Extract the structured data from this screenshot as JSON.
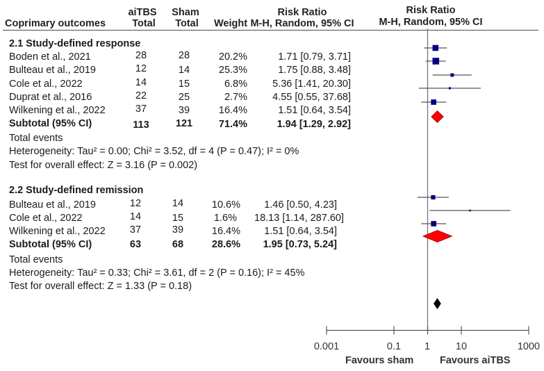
{
  "header": {
    "outcome_label": "Coprimary outcomes",
    "aitbs_label": "aiTBS",
    "aitbs_total_label": "Total",
    "sham_label": "Sham",
    "sham_total_label": "Total",
    "weight_label": "Weight",
    "rr_label": "Risk Ratio",
    "rr_method_label": "M-H, Random, 95% CI",
    "plot_rr_label": "Risk Ratio",
    "plot_rr_method_label": "M-H, Random, 95% CI"
  },
  "chart_data": {
    "type": "forest",
    "title": "",
    "xscale": "log",
    "xlim": [
      0.001,
      1000
    ],
    "x_ticks": [
      "0.001",
      "0.1",
      "1",
      "10",
      "1000"
    ],
    "x_tick_values": [
      0.001,
      0.1,
      1,
      10,
      1000
    ],
    "xlabel_left": "Favours sham",
    "xlabel_right": "Favours aiTBS",
    "colors": {
      "study": "#000080",
      "subtotal": "#ff0000",
      "overall": "#000000",
      "line": "#555555"
    },
    "subgroups": [
      {
        "title": "2.1 Study-defined response",
        "studies": [
          {
            "name": "Boden et al., 2021",
            "aitbs_total": "28",
            "sham_total": "28",
            "weight": "20.2%",
            "rr_text": "1.71 [0.79, 3.71]",
            "rr": 1.71,
            "lo": 0.79,
            "hi": 3.71,
            "w": 20.2
          },
          {
            "name": "Bulteau et al., 2019",
            "aitbs_total": "12",
            "sham_total": "14",
            "weight": "25.3%",
            "rr_text": "1.75 [0.88, 3.48]",
            "rr": 1.75,
            "lo": 0.88,
            "hi": 3.48,
            "w": 25.3
          },
          {
            "name": "Cole et al., 2022",
            "aitbs_total": "14",
            "sham_total": "15",
            "weight": "6.8%",
            "rr_text": "5.36 [1.41, 20.30]",
            "rr": 5.36,
            "lo": 1.41,
            "hi": 20.3,
            "w": 6.8
          },
          {
            "name": "Duprat et al., 2016",
            "aitbs_total": "22",
            "sham_total": "25",
            "weight": "2.7%",
            "rr_text": "4.55 [0.55, 37.68]",
            "rr": 4.55,
            "lo": 0.55,
            "hi": 37.68,
            "w": 2.7
          },
          {
            "name": "Wilkening et al., 2022",
            "aitbs_total": "37",
            "sham_total": "39",
            "weight": "16.4%",
            "rr_text": "1.51 [0.64, 3.54]",
            "rr": 1.51,
            "lo": 0.64,
            "hi": 3.54,
            "w": 16.4
          }
        ],
        "subtotal": {
          "label": "Subtotal (95% CI)",
          "aitbs_total": "113",
          "sham_total": "121",
          "weight": "71.4%",
          "rr_text": "1.94 [1.29, 2.92]",
          "rr": 1.94,
          "lo": 1.29,
          "hi": 2.92
        },
        "total_events_label": "Total events",
        "heterogeneity": "Heterogeneity: Tau² = 0.00; Chi² = 3.52, df = 4 (P = 0.47); I² = 0%",
        "overall_effect": "Test for overall effect: Z = 3.16 (P = 0.002)"
      },
      {
        "title": "2.2 Study-defined remission",
        "studies": [
          {
            "name": "Bulteau et al., 2019",
            "aitbs_total": "12",
            "sham_total": "14",
            "weight": "10.6%",
            "rr_text": "1.46 [0.50, 4.23]",
            "rr": 1.46,
            "lo": 0.5,
            "hi": 4.23,
            "w": 10.6
          },
          {
            "name": "Cole et al., 2022",
            "aitbs_total": "14",
            "sham_total": "15",
            "weight": "1.6%",
            "rr_text": "18.13 [1.14, 287.60]",
            "rr": 18.13,
            "lo": 1.14,
            "hi": 287.6,
            "w": 1.6
          },
          {
            "name": "Wilkening et al., 2022",
            "aitbs_total": "37",
            "sham_total": "39",
            "weight": "16.4%",
            "rr_text": "1.51 [0.64, 3.54]",
            "rr": 1.51,
            "lo": 0.64,
            "hi": 3.54,
            "w": 16.4
          }
        ],
        "subtotal": {
          "label": "Subtotal (95% CI)",
          "aitbs_total": "63",
          "sham_total": "68",
          "weight": "28.6%",
          "rr_text": "1.95 [0.73, 5.24]",
          "rr": 1.95,
          "lo": 0.73,
          "hi": 5.24
        },
        "total_events_label": "Total events",
        "heterogeneity": "Heterogeneity: Tau² = 0.33; Chi² = 3.61, df = 2 (P = 0.16); I² = 45%",
        "overall_effect": "Test for overall effect: Z = 1.33 (P = 0.18)"
      }
    ],
    "overall": {
      "rr": 1.94,
      "lo": 1.5,
      "hi": 2.5
    }
  }
}
